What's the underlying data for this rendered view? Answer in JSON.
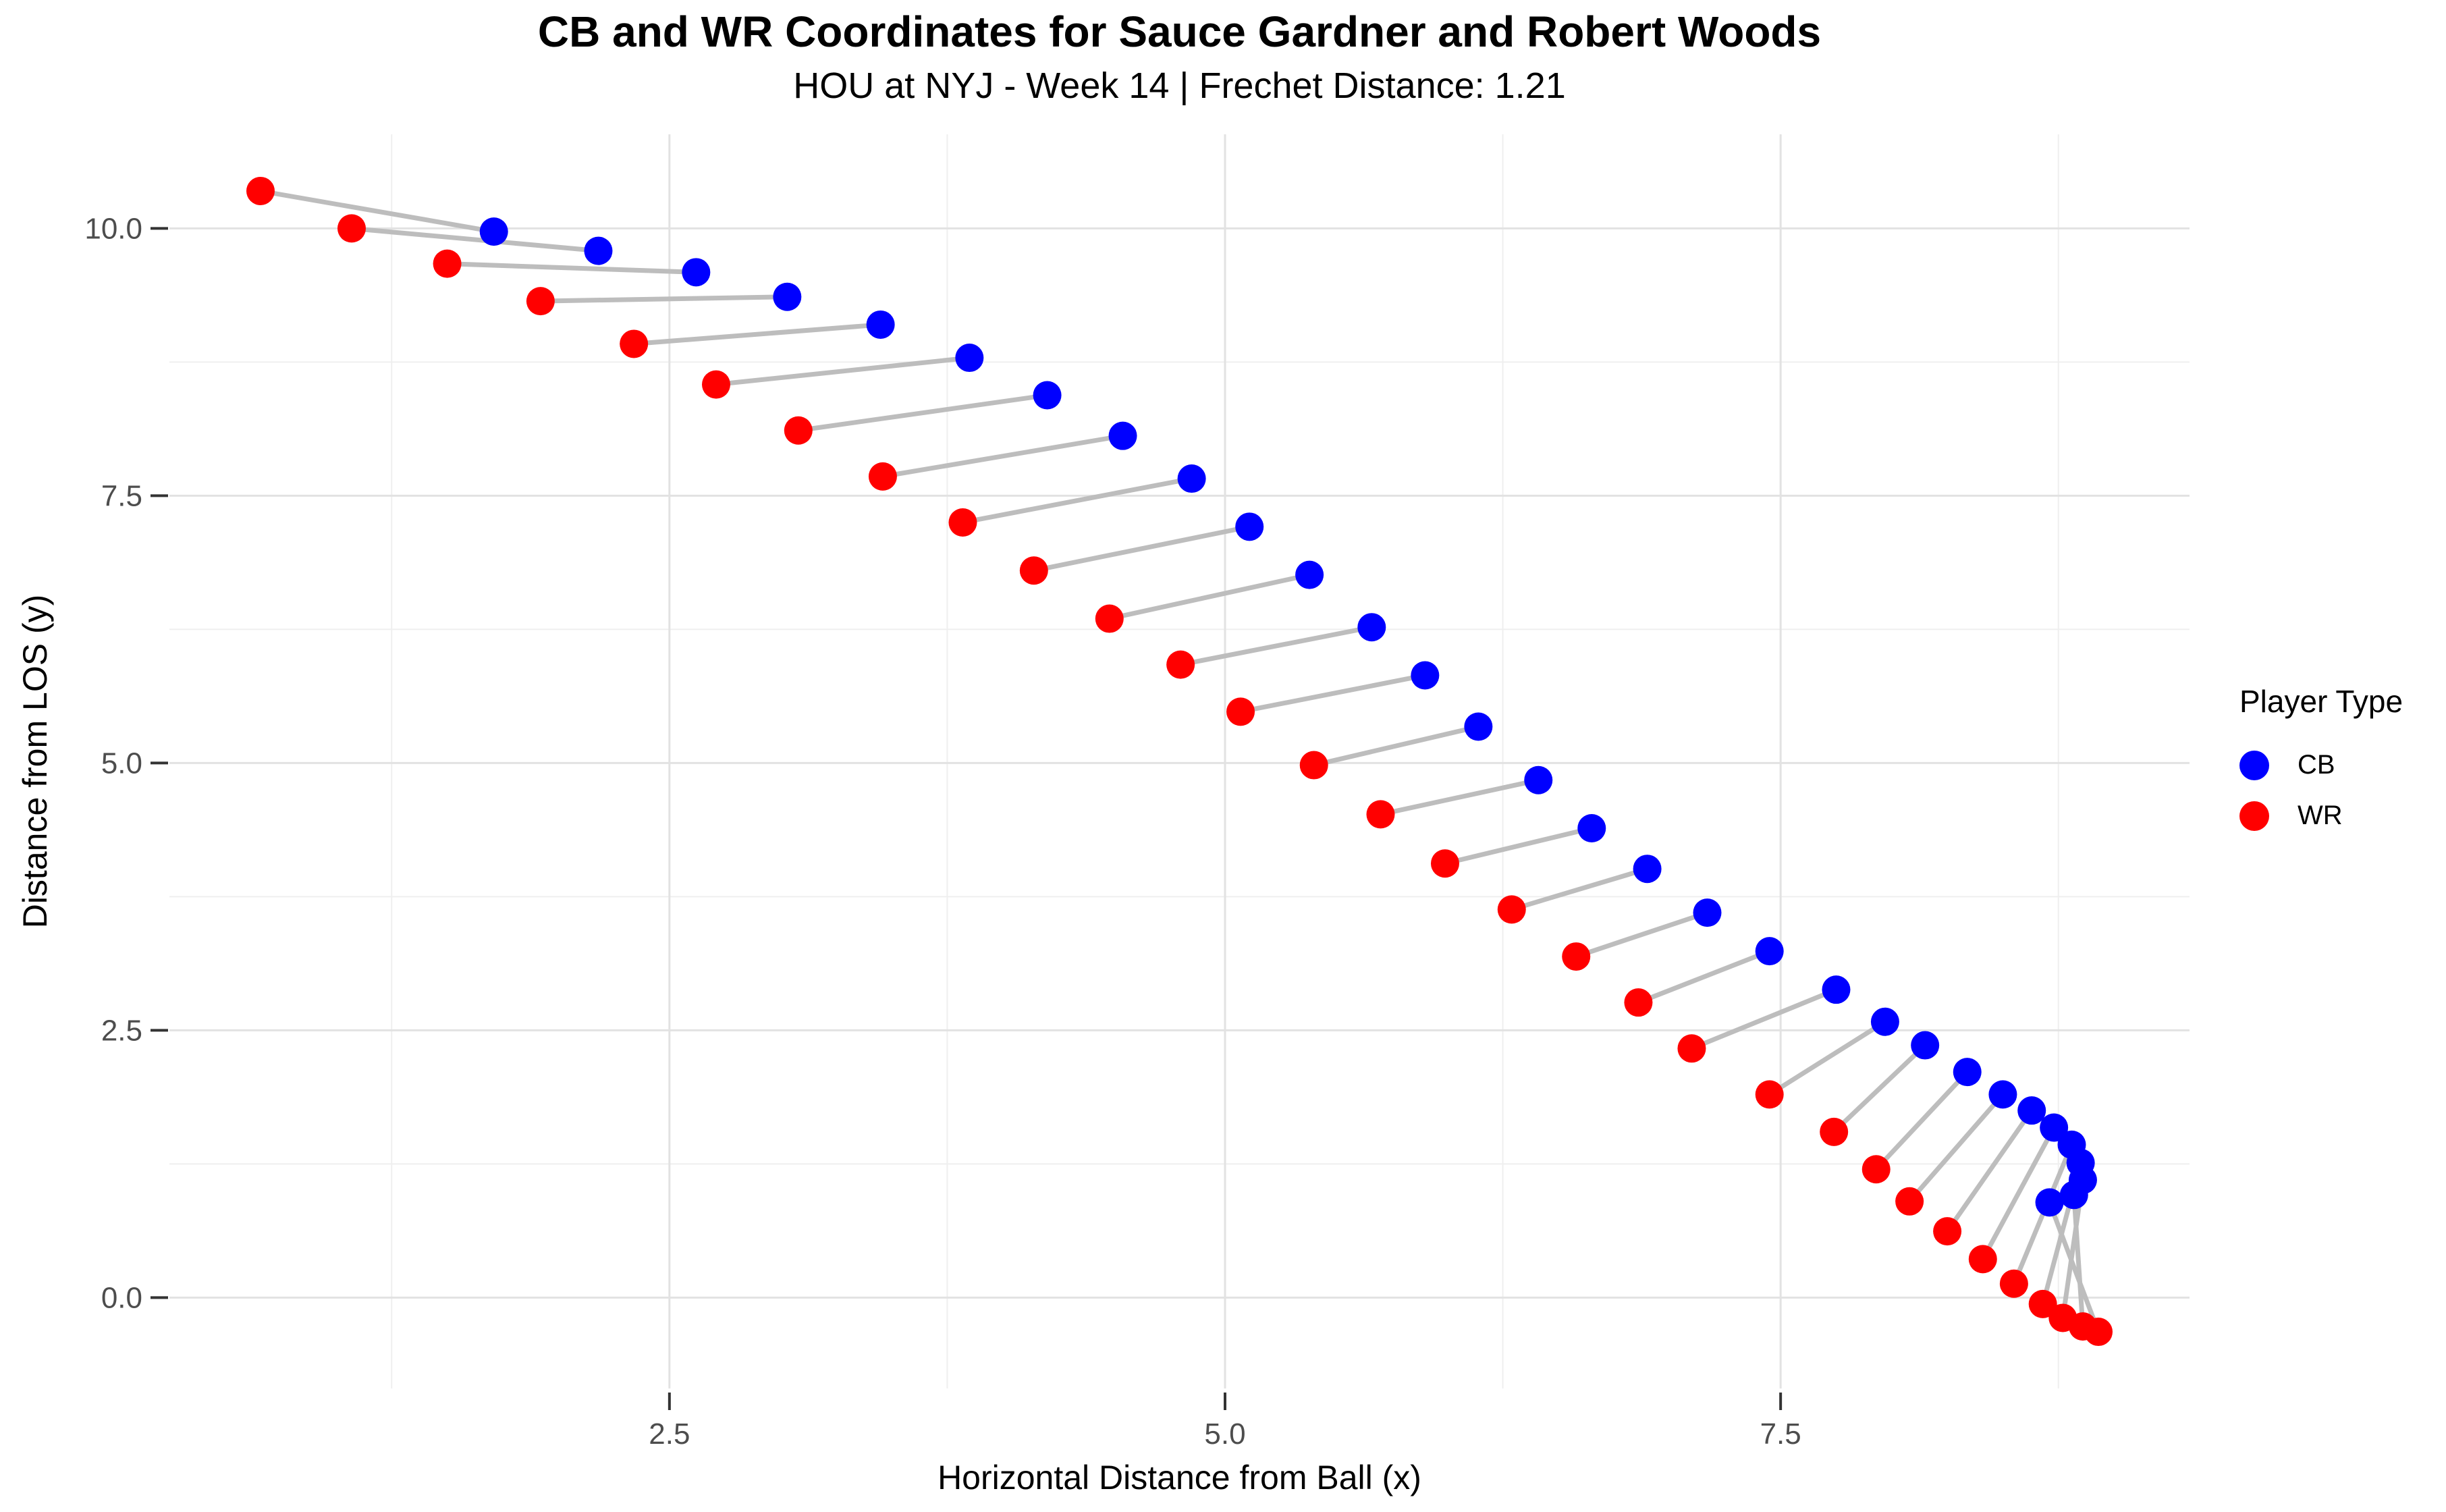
{
  "title": "CB and WR Coordinates for Sauce Gardner and Robert Woods",
  "subtitle": "HOU at NYJ - Week 14 | Frechet Distance: 1.21",
  "frechet_distance": 1.21,
  "game": "HOU at NYJ",
  "week": "Week 14",
  "axes": {
    "x": {
      "label": "Horizontal Distance from Ball (x)",
      "ticks": [
        {
          "value": 2.5,
          "label": "2.5"
        },
        {
          "value": 5.0,
          "label": "5.0"
        },
        {
          "value": 7.5,
          "label": "7.5"
        }
      ],
      "minor_gridlines": [
        1.25,
        3.75,
        6.25,
        8.75
      ],
      "range": [
        0.25,
        9.34
      ]
    },
    "y": {
      "label": "Distance from LOS (y)",
      "ticks": [
        {
          "value": 0.0,
          "label": "0.0"
        },
        {
          "value": 2.5,
          "label": "2.5"
        },
        {
          "value": 5.0,
          "label": "5.0"
        },
        {
          "value": 7.5,
          "label": "7.5"
        },
        {
          "value": 10.0,
          "label": "10.0"
        }
      ],
      "minor_gridlines": [
        1.25,
        3.75,
        6.25,
        8.75
      ],
      "range": [
        -0.85,
        10.88
      ]
    }
  },
  "legend": {
    "title": "Player Type",
    "position": "right",
    "items": [
      {
        "label": "CB",
        "color": "#0000ff"
      },
      {
        "label": "WR",
        "color": "#ff0000"
      }
    ]
  },
  "colors": {
    "cb": "#0000ff",
    "wr": "#ff0000",
    "segment": "#bdbdbd",
    "grid_major": "#e2e2e2",
    "grid_minor": "#efefef",
    "tick_label": "#4d4d4d",
    "tick_mark": "#333333",
    "background": "#ffffff"
  },
  "chart_data": {
    "type": "scatter",
    "title": "CB and WR Coordinates for Sauce Gardner and Robert Woods",
    "subtitle": "HOU at NYJ - Week 14 | Frechet Distance: 1.21",
    "xlabel": "Horizontal Distance from Ball (x)",
    "ylabel": "Distance from LOS (y)",
    "xlim": [
      0.25,
      9.34
    ],
    "ylim": [
      -0.85,
      10.88
    ],
    "grid": true,
    "legend_position": "right",
    "pairing": "points of equal index in the two series are joined by a gray segment",
    "series": [
      {
        "name": "CB",
        "color": "#0000ff",
        "points": [
          [
            1.71,
            9.97
          ],
          [
            2.18,
            9.79
          ],
          [
            2.62,
            9.59
          ],
          [
            3.03,
            9.36
          ],
          [
            3.45,
            9.1
          ],
          [
            3.85,
            8.79
          ],
          [
            4.2,
            8.44
          ],
          [
            4.54,
            8.06
          ],
          [
            4.85,
            7.66
          ],
          [
            5.11,
            7.21
          ],
          [
            5.38,
            6.76
          ],
          [
            5.66,
            6.27
          ],
          [
            5.9,
            5.82
          ],
          [
            6.14,
            5.34
          ],
          [
            6.41,
            4.84
          ],
          [
            6.65,
            4.39
          ],
          [
            6.9,
            4.01
          ],
          [
            7.17,
            3.6
          ],
          [
            7.45,
            3.24
          ],
          [
            7.75,
            2.88
          ],
          [
            7.97,
            2.58
          ],
          [
            8.15,
            2.36
          ],
          [
            8.34,
            2.11
          ],
          [
            8.5,
            1.9
          ],
          [
            8.63,
            1.75
          ],
          [
            8.73,
            1.59
          ],
          [
            8.81,
            1.43
          ],
          [
            8.85,
            1.26
          ],
          [
            8.86,
            1.1
          ],
          [
            8.82,
            0.96
          ],
          [
            8.71,
            0.89
          ]
        ]
      },
      {
        "name": "WR",
        "color": "#ff0000",
        "points": [
          [
            0.66,
            10.35
          ],
          [
            1.07,
            10.0
          ],
          [
            1.5,
            9.67
          ],
          [
            1.92,
            9.32
          ],
          [
            2.34,
            8.92
          ],
          [
            2.71,
            8.54
          ],
          [
            3.08,
            8.11
          ],
          [
            3.46,
            7.68
          ],
          [
            3.82,
            7.25
          ],
          [
            4.14,
            6.8
          ],
          [
            4.48,
            6.35
          ],
          [
            4.8,
            5.92
          ],
          [
            5.07,
            5.48
          ],
          [
            5.4,
            4.98
          ],
          [
            5.7,
            4.52
          ],
          [
            5.99,
            4.06
          ],
          [
            6.29,
            3.63
          ],
          [
            6.58,
            3.19
          ],
          [
            6.86,
            2.76
          ],
          [
            7.1,
            2.33
          ],
          [
            7.45,
            1.9
          ],
          [
            7.74,
            1.55
          ],
          [
            7.93,
            1.2
          ],
          [
            8.08,
            0.9
          ],
          [
            8.25,
            0.62
          ],
          [
            8.41,
            0.36
          ],
          [
            8.55,
            0.13
          ],
          [
            8.68,
            -0.06
          ],
          [
            8.77,
            -0.19
          ],
          [
            8.86,
            -0.27
          ],
          [
            8.93,
            -0.32
          ]
        ]
      }
    ]
  }
}
